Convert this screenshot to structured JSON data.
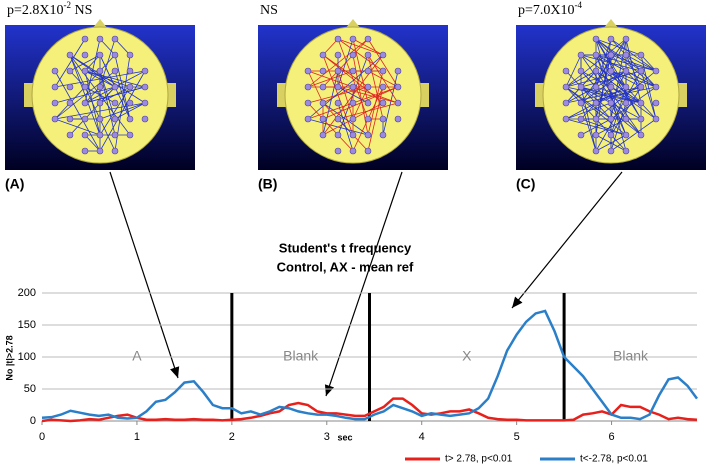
{
  "panels": [
    {
      "label": "(A)",
      "p_text": "p=2.8X10",
      "p_sup": "-2",
      "p_suffix": "NS"
    },
    {
      "label": "(B)",
      "p_text": "NS"
    },
    {
      "label": "(C)",
      "p_text": "p=7.0X10",
      "p_sup": "-4"
    }
  ],
  "chart_data": {
    "type": "line",
    "title": "Student's t frequency",
    "subtitle": "Control, AX - mean ref",
    "x_label": "sec",
    "y_label": "No |t|>2.78",
    "x": [
      0,
      0.1,
      0.2,
      0.3,
      0.4,
      0.5,
      0.6,
      0.7,
      0.8,
      0.9,
      1,
      1.1,
      1.2,
      1.3,
      1.4,
      1.5,
      1.6,
      1.7,
      1.8,
      1.9,
      2,
      2.1,
      2.2,
      2.3,
      2.4,
      2.5,
      2.6,
      2.7,
      2.8,
      2.9,
      3,
      3.1,
      3.2,
      3.3,
      3.4,
      3.5,
      3.6,
      3.7,
      3.8,
      3.9,
      4,
      4.1,
      4.2,
      4.3,
      4.4,
      4.5,
      4.6,
      4.7,
      4.8,
      4.9,
      5,
      5.1,
      5.2,
      5.3,
      5.4,
      5.5,
      5.6,
      5.7,
      5.8,
      5.9,
      6,
      6.1,
      6.2,
      6.3,
      6.4,
      6.5,
      6.6,
      6.7,
      6.8,
      6.9
    ],
    "series": [
      {
        "name": "t> 2.78, p<0.01",
        "color": "#e8201c",
        "values": [
          0,
          2,
          1,
          0,
          1,
          3,
          2,
          5,
          8,
          10,
          5,
          2,
          2,
          3,
          2,
          2,
          3,
          2,
          2,
          1,
          2,
          3,
          5,
          8,
          12,
          15,
          25,
          28,
          25,
          15,
          12,
          12,
          10,
          8,
          8,
          15,
          22,
          35,
          35,
          25,
          12,
          10,
          12,
          15,
          15,
          18,
          12,
          5,
          3,
          2,
          2,
          1,
          1,
          1,
          1,
          1,
          2,
          10,
          12,
          15,
          10,
          25,
          22,
          22,
          15,
          10,
          3,
          5,
          3,
          2
        ]
      },
      {
        "name": "t<-2.78, p<0.01",
        "color": "#2a7fc8",
        "values": [
          5,
          6,
          10,
          16,
          13,
          10,
          8,
          10,
          5,
          4,
          5,
          15,
          30,
          33,
          45,
          60,
          62,
          45,
          25,
          20,
          20,
          12,
          15,
          10,
          15,
          22,
          20,
          15,
          12,
          10,
          10,
          8,
          5,
          3,
          3,
          10,
          15,
          25,
          20,
          15,
          8,
          12,
          10,
          8,
          10,
          12,
          20,
          35,
          70,
          110,
          135,
          155,
          168,
          172,
          140,
          100,
          85,
          70,
          50,
          30,
          10,
          5,
          5,
          3,
          10,
          40,
          65,
          68,
          55,
          35
        ]
      }
    ],
    "dividers": [
      2,
      3.45,
      5.5
    ],
    "regions": [
      "A",
      "Blank",
      "X",
      "Blank"
    ],
    "xlim": [
      0,
      6.9
    ],
    "ylim": [
      0,
      200
    ],
    "xticks": [
      0,
      1,
      2,
      3,
      4,
      5,
      6
    ],
    "yticks": [
      0,
      50,
      100,
      150,
      200
    ],
    "grid": true
  }
}
